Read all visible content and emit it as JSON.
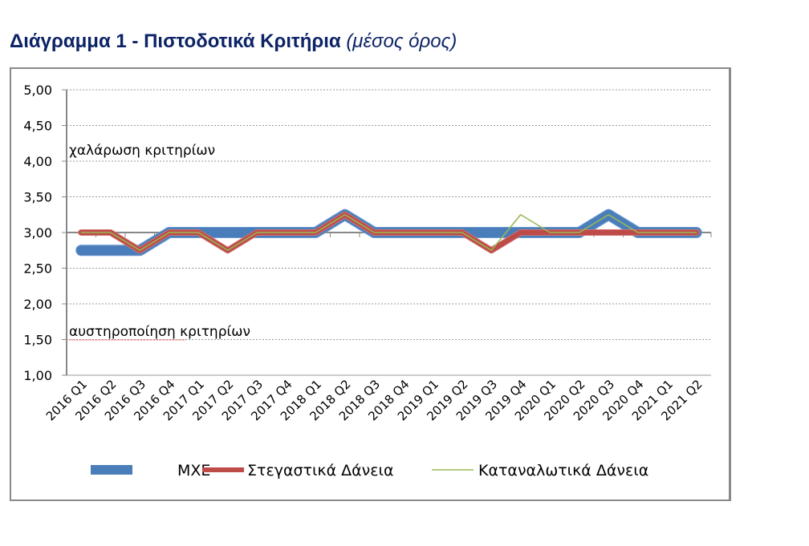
{
  "title": {
    "main": "Διάγραμμα 1 - Πιστοδοτικά Κριτήρια",
    "sub": "(μέσος όρος)"
  },
  "chart_data": {
    "type": "line",
    "categories": [
      "2016 Q1",
      "2016 Q2",
      "2016 Q3",
      "2016 Q4",
      "2017 Q1",
      "2017 Q2",
      "2017 Q3",
      "2017 Q4",
      "2018 Q1",
      "2018 Q2",
      "2018 Q3",
      "2018 Q4",
      "2019 Q1",
      "2019 Q2",
      "2019 Q3",
      "2019 Q4",
      "2020 Q1",
      "2020 Q2",
      "2020 Q3",
      "2020 Q4",
      "2021 Q1",
      "2021 Q2"
    ],
    "series": [
      {
        "name": "ΜΧΕ",
        "color": "#4a7ebb",
        "values": [
          2.75,
          2.75,
          2.75,
          3.0,
          3.0,
          3.0,
          3.0,
          3.0,
          3.0,
          3.25,
          3.0,
          3.0,
          3.0,
          3.0,
          3.0,
          3.0,
          3.0,
          3.0,
          3.25,
          3.0,
          3.0,
          3.0
        ]
      },
      {
        "name": "Στεγαστικά Δάνεια",
        "color": "#be4b48",
        "values": [
          3.0,
          3.0,
          2.75,
          3.0,
          3.0,
          2.75,
          3.0,
          3.0,
          3.0,
          3.25,
          3.0,
          3.0,
          3.0,
          3.0,
          2.75,
          3.0,
          3.0,
          3.0,
          3.0,
          3.0,
          3.0,
          3.0
        ]
      },
      {
        "name": "Καταναλωτικά Δάνεια",
        "color": "#98b954",
        "values": [
          3.0,
          3.0,
          2.75,
          3.0,
          3.0,
          2.75,
          3.0,
          3.0,
          3.0,
          3.25,
          3.0,
          3.0,
          3.0,
          3.0,
          2.75,
          3.25,
          3.0,
          3.0,
          3.25,
          3.0,
          3.0,
          3.0
        ]
      }
    ],
    "ylim": [
      1.0,
      5.0
    ],
    "yticks": [
      "1,00",
      "1,50",
      "2,00",
      "2,50",
      "3,00",
      "3,50",
      "4,00",
      "4,50",
      "5,00"
    ],
    "axis_crosses_at": 3.0,
    "grid": true,
    "legend": "bottom",
    "annotations": [
      "χαλάρωση κριτηρίων",
      "αυστηροποίηση κριτηρίων"
    ]
  }
}
